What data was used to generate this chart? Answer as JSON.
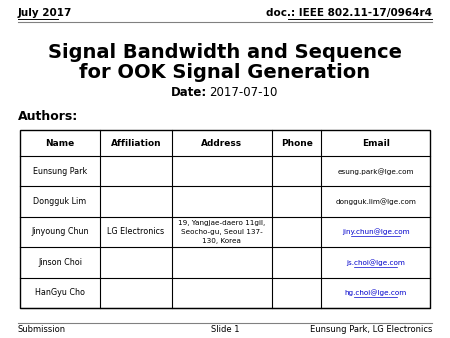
{
  "header_left": "July 2017",
  "header_right": "doc.: IEEE 802.11-17/0964r4",
  "title_line1": "Signal Bandwidth and Sequence",
  "title_line2": "for OOK Signal Generation",
  "date_label": "Date:",
  "date_value": "2017-07-10",
  "authors_label": "Authors:",
  "footer_left": "Submission",
  "footer_center": "Slide 1",
  "footer_right": "Eunsung Park, LG Electronics",
  "table_headers": [
    "Name",
    "Affiliation",
    "Address",
    "Phone",
    "Email"
  ],
  "table_rows": [
    [
      "Eunsung Park",
      "",
      "",
      "",
      "esung.park@lge.com"
    ],
    [
      "Dongguk Lim",
      "",
      "",
      "",
      "dongguk.lim@lge.com"
    ],
    [
      "Jinyoung Chun",
      "LG Electronics",
      "19, Yangjae-daero 11gil,\nSeocho-gu, Seoul 137-\n130, Korea",
      "",
      "jiny.chun@lge.com"
    ],
    [
      "Jinson Choi",
      "",
      "",
      "",
      "js.choi@lge.com"
    ],
    [
      "HanGyu Cho",
      "",
      "",
      "",
      "hg.choi@lge.com"
    ]
  ],
  "link_color": "#0000CC",
  "link_rows": [
    2,
    3,
    4
  ],
  "bg_color": "#ffffff",
  "text_color": "#000000",
  "header_line_color": "#808080",
  "footer_line_color": "#808080"
}
